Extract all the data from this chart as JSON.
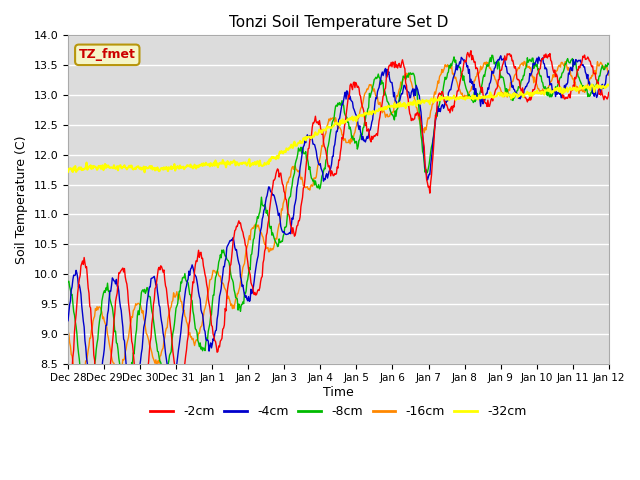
{
  "title": "Tonzi Soil Temperature Set D",
  "xlabel": "Time",
  "ylabel": "Soil Temperature (C)",
  "ylim": [
    8.5,
    14.0
  ],
  "plot_bg_color": "#dcdcdc",
  "legend_label": "TZ_fmet",
  "legend_box_facecolor": "#f5f5c8",
  "legend_box_edgecolor": "#b8960c",
  "series_colors": {
    "-2cm": "#ff0000",
    "-4cm": "#0000cc",
    "-8cm": "#00bb00",
    "-16cm": "#ff8800",
    "-32cm": "#ffff00"
  },
  "x_tick_labels": [
    "Dec 28",
    "Dec 29",
    "Dec 30",
    "Dec 31",
    "Jan 1",
    "Jan 2",
    "Jan 3",
    "Jan 4",
    "Jan 5",
    "Jan 6",
    "Jan 7",
    "Jan 8",
    "Jan 9",
    "Jan 10",
    "Jan 11",
    "Jan 12"
  ],
  "y_ticks": [
    8.5,
    9.0,
    9.5,
    10.0,
    10.5,
    11.0,
    11.5,
    12.0,
    12.5,
    13.0,
    13.5,
    14.0
  ]
}
